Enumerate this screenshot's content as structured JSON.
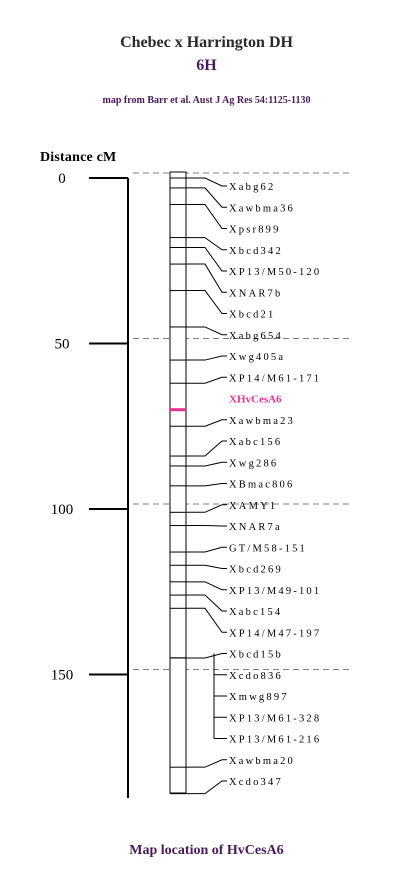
{
  "title_line1": "Chebec x Harrington DH",
  "title_line2": "6H",
  "source": "map from Barr et al. Aust J Ag Res 54:1125-1130",
  "axis_title": "Distance  cM",
  "caption": "Map location of HvCesA6",
  "ticks": [
    {
      "label": "0",
      "cm": 0
    },
    {
      "label": "50",
      "cm": 50
    },
    {
      "label": "100",
      "cm": 100
    },
    {
      "label": "150",
      "cm": 150
    }
  ],
  "colors": {
    "highlight": "#e8338a",
    "title": "#4a1a5a",
    "line": "#000000"
  },
  "markers": [
    {
      "name": "Xabg62",
      "cm": 0,
      "highlight": false
    },
    {
      "name": "Xawbma36",
      "cm": 3,
      "highlight": false
    },
    {
      "name": "Xpsr899",
      "cm": 8,
      "highlight": false
    },
    {
      "name": "Xbcd342",
      "cm": 18,
      "highlight": false
    },
    {
      "name": "XP13/M50-120",
      "cm": 21,
      "highlight": false
    },
    {
      "name": "XNAR7b",
      "cm": 26,
      "highlight": false
    },
    {
      "name": "Xbcd21",
      "cm": 34,
      "highlight": false
    },
    {
      "name": "Xabg654",
      "cm": 45,
      "highlight": false
    },
    {
      "name": "Xwg405a",
      "cm": 55,
      "highlight": false
    },
    {
      "name": "XP14/M61-171",
      "cm": 62,
      "highlight": false
    },
    {
      "name": "XHvCesA6",
      "cm": 70,
      "highlight": true
    },
    {
      "name": "Xawbma23",
      "cm": 75,
      "highlight": false
    },
    {
      "name": "Xabc156",
      "cm": 84,
      "highlight": false
    },
    {
      "name": "Xwg286",
      "cm": 87,
      "highlight": false
    },
    {
      "name": "XBmac806",
      "cm": 93,
      "highlight": false
    },
    {
      "name": "XAMY1",
      "cm": 101,
      "highlight": false
    },
    {
      "name": "XNAR7a",
      "cm": 105,
      "highlight": false
    },
    {
      "name": "GT/M58-151",
      "cm": 113,
      "highlight": false
    },
    {
      "name": "Xbcd269",
      "cm": 117,
      "highlight": false
    },
    {
      "name": "XP13/M49-101",
      "cm": 122,
      "highlight": false
    },
    {
      "name": "Xabc154",
      "cm": 126,
      "highlight": false
    },
    {
      "name": "XP14/M47-197",
      "cm": 130,
      "highlight": false
    },
    {
      "name": "Xbcd15b",
      "cm": 145,
      "highlight": false
    },
    {
      "name": "Xcdo836",
      "cm": 145,
      "highlight": false
    },
    {
      "name": "Xmwg897",
      "cm": 145,
      "highlight": false
    },
    {
      "name": "XP13/M61-328",
      "cm": 145,
      "highlight": false
    },
    {
      "name": "XP13/M61-216",
      "cm": 145,
      "highlight": false
    },
    {
      "name": "Xawbma20",
      "cm": 178,
      "highlight": false
    },
    {
      "name": "Xcdo347",
      "cm": 186,
      "highlight": false
    }
  ]
}
